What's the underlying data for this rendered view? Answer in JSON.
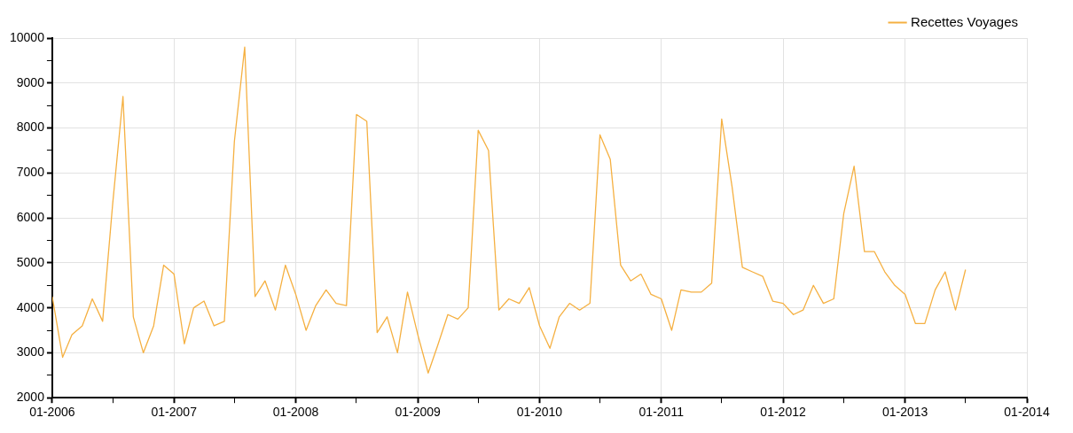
{
  "chart_data": {
    "type": "line",
    "x": [
      "2006-01",
      "2006-02",
      "2006-03",
      "2006-04",
      "2006-05",
      "2006-06",
      "2006-07",
      "2006-08",
      "2006-09",
      "2006-10",
      "2006-11",
      "2006-12",
      "2007-01",
      "2007-02",
      "2007-03",
      "2007-04",
      "2007-05",
      "2007-06",
      "2007-07",
      "2007-08",
      "2007-09",
      "2007-10",
      "2007-11",
      "2007-12",
      "2008-01",
      "2008-02",
      "2008-03",
      "2008-04",
      "2008-05",
      "2008-06",
      "2008-07",
      "2008-08",
      "2008-09",
      "2008-10",
      "2008-11",
      "2008-12",
      "2009-01",
      "2009-02",
      "2009-03",
      "2009-04",
      "2009-05",
      "2009-06",
      "2009-07",
      "2009-08",
      "2009-09",
      "2009-10",
      "2009-11",
      "2009-12",
      "2010-01",
      "2010-02",
      "2010-03",
      "2010-04",
      "2010-05",
      "2010-06",
      "2010-07",
      "2010-08",
      "2010-09",
      "2010-10",
      "2010-11",
      "2010-12",
      "2011-01",
      "2011-02",
      "2011-03",
      "2011-04",
      "2011-05",
      "2011-06",
      "2011-07",
      "2011-08",
      "2011-09",
      "2011-10",
      "2011-11",
      "2011-12",
      "2012-01",
      "2012-02",
      "2012-03",
      "2012-04",
      "2012-05",
      "2012-06",
      "2012-07",
      "2012-08",
      "2012-09",
      "2012-10",
      "2012-11",
      "2012-12",
      "2013-01",
      "2013-02",
      "2013-03",
      "2013-04",
      "2013-05",
      "2013-06",
      "2013-07"
    ],
    "series": [
      {
        "name": "Recettes Voyages",
        "color": "#f5b041",
        "values": [
          4250,
          2900,
          3400,
          3600,
          4200,
          3700,
          6300,
          8700,
          3800,
          3000,
          3600,
          4950,
          4750,
          3200,
          4000,
          4150,
          3600,
          3700,
          7700,
          9800,
          4250,
          4600,
          3950,
          4950,
          4300,
          3500,
          4050,
          4400,
          4100,
          4050,
          8300,
          8150,
          3450,
          3800,
          3000,
          4350,
          3400,
          2550,
          3150,
          3850,
          3750,
          4000,
          7950,
          7500,
          3950,
          4200,
          4100,
          4450,
          3600,
          3100,
          3800,
          4100,
          3950,
          4100,
          7850,
          7300,
          4950,
          4600,
          4750,
          4300,
          4200,
          3500,
          4400,
          4350,
          4350,
          4550,
          8200,
          6700,
          4900,
          4800,
          4700,
          4150,
          4100,
          3850,
          3950,
          4500,
          4100,
          4200,
          6100,
          7150,
          5250,
          5250,
          4800,
          4500,
          4300,
          3650,
          3650,
          4400,
          4800,
          3950,
          4850
        ]
      }
    ],
    "xlim": [
      "2006-01",
      "2014-01"
    ],
    "xticks": [
      {
        "value": "2006-01",
        "label": "01-2006"
      },
      {
        "value": "2006-07",
        "label": null
      },
      {
        "value": "2007-01",
        "label": "01-2007"
      },
      {
        "value": "2007-07",
        "label": null
      },
      {
        "value": "2008-01",
        "label": "01-2008"
      },
      {
        "value": "2008-07",
        "label": null
      },
      {
        "value": "2009-01",
        "label": "01-2009"
      },
      {
        "value": "2009-07",
        "label": null
      },
      {
        "value": "2010-01",
        "label": "01-2010"
      },
      {
        "value": "2010-07",
        "label": null
      },
      {
        "value": "2011-01",
        "label": "01-2011"
      },
      {
        "value": "2011-07",
        "label": null
      },
      {
        "value": "2012-01",
        "label": "01-2012"
      },
      {
        "value": "2012-07",
        "label": null
      },
      {
        "value": "2013-01",
        "label": "01-2013"
      },
      {
        "value": "2013-07",
        "label": null
      },
      {
        "value": "2014-01",
        "label": "01-2014"
      }
    ],
    "ylim": [
      2000,
      10000
    ],
    "yticks": [
      2000,
      {
        "value": 2500,
        "label": null
      },
      3000,
      {
        "value": 3500,
        "label": null
      },
      4000,
      {
        "value": 4500,
        "label": null
      },
      5000,
      {
        "value": 5500,
        "label": null
      },
      6000,
      {
        "value": 6500,
        "label": null
      },
      7000,
      {
        "value": 7500,
        "label": null
      },
      8000,
      {
        "value": 8500,
        "label": null
      },
      9000,
      {
        "value": 9500,
        "label": null
      },
      10000
    ],
    "grid": true,
    "legend": "top right",
    "marker": "none",
    "line_style": "solid"
  }
}
